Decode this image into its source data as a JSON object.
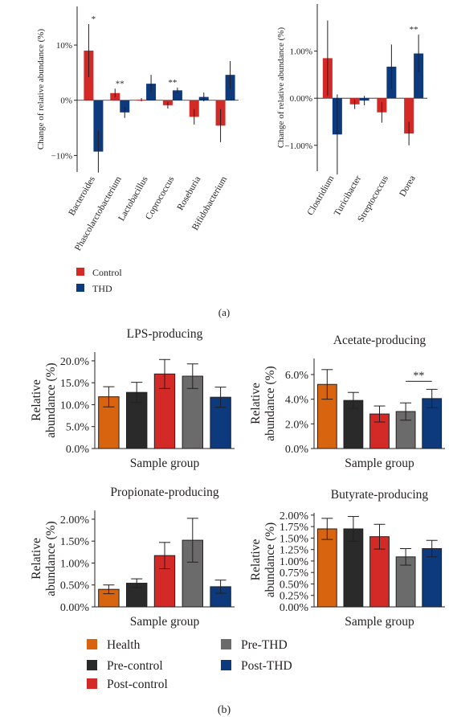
{
  "panel_labels": {
    "a": "(a)",
    "b": "(b)"
  },
  "legend_a": [
    {
      "label": "Control",
      "color": "#d42a27"
    },
    {
      "label": "THD",
      "color": "#0d3a7d"
    }
  ],
  "legend_b": [
    {
      "label": "Health",
      "color": "#d9640f"
    },
    {
      "label": "Pre-control",
      "color": "#2a2a2a"
    },
    {
      "label": "Post-control",
      "color": "#d42a27"
    },
    {
      "label": "Pre-THD",
      "color": "#6b6b6b"
    },
    {
      "label": "Post-THD",
      "color": "#0d3a7d"
    }
  ],
  "chart_data": [
    {
      "id": "a-left",
      "type": "bar",
      "ylabel": "Change of relative abundance (%)",
      "yticks": [
        "10%",
        "0%",
        "−10%"
      ],
      "ylim": [
        -13,
        17
      ],
      "categories": [
        "Bacteroides",
        "Phascolarctobacterium",
        "Lactobacillus",
        "Coprococcus",
        "Roseburia",
        "Bifidobacterium"
      ],
      "series": [
        {
          "name": "Control",
          "color": "#d42a27",
          "values": [
            9.0,
            1.3,
            0.1,
            -0.9,
            -3.0,
            -4.6
          ],
          "err": [
            4.8,
            0.8,
            0.3,
            0.6,
            1.4,
            3.0
          ]
        },
        {
          "name": "THD",
          "color": "#0d3a7d",
          "values": [
            -9.3,
            -2.2,
            3.0,
            1.8,
            0.6,
            4.6
          ],
          "err": [
            3.8,
            1.0,
            1.6,
            0.5,
            0.8,
            2.5
          ]
        }
      ],
      "annotations": [
        {
          "category": 0,
          "text": "*"
        },
        {
          "category": 1,
          "text": "**"
        },
        {
          "category": 3,
          "text": "**"
        }
      ]
    },
    {
      "id": "a-right",
      "type": "bar",
      "ylabel": "Change of relative abundance (%)",
      "yticks": [
        "1.00%",
        "0.00%",
        "−1.00%"
      ],
      "ylim": [
        -1.55,
        2.0
      ],
      "categories": [
        "Clostridium",
        "Turicibacter",
        "Streptococcus",
        "Dorea"
      ],
      "series": [
        {
          "name": "Control",
          "color": "#d42a27",
          "values": [
            0.85,
            -0.13,
            -0.3,
            -0.75
          ],
          "err": [
            0.8,
            0.1,
            0.22,
            0.25
          ]
        },
        {
          "name": "THD",
          "color": "#0d3a7d",
          "values": [
            -0.77,
            -0.05,
            0.67,
            0.95
          ],
          "err": [
            0.85,
            0.1,
            0.47,
            0.4
          ]
        }
      ],
      "annotations": [
        {
          "category": 3,
          "text": "**"
        }
      ]
    },
    {
      "id": "b-lps",
      "type": "bar",
      "title": "LPS-producing",
      "ylabel": [
        "Relative",
        "abundance (%)"
      ],
      "xlabel": "Sample group",
      "yticks": [
        "0.0%",
        "5.0%",
        "10.0%",
        "15.0%",
        "20.0%"
      ],
      "ylim": [
        0,
        22
      ],
      "categories": [
        "Health",
        "Pre-control",
        "Post-control",
        "Pre-THD",
        "Post-THD"
      ],
      "values": [
        11.8,
        12.8,
        17.0,
        16.5,
        11.7
      ],
      "err": [
        2.3,
        2.3,
        3.3,
        2.8,
        2.3
      ]
    },
    {
      "id": "b-acetate",
      "type": "bar",
      "title": "Acetate-producing",
      "ylabel": [
        "Relative",
        "abundance (%)"
      ],
      "xlabel": "Sample group",
      "yticks": [
        "0.0%",
        "2.0%",
        "4.0%",
        "6.0%"
      ],
      "ylim": [
        0,
        7.3
      ],
      "categories": [
        "Health",
        "Pre-control",
        "Post-control",
        "Pre-THD",
        "Post-THD"
      ],
      "values": [
        5.2,
        3.9,
        2.8,
        3.0,
        4.05
      ],
      "err": [
        1.2,
        0.65,
        0.65,
        0.7,
        0.75
      ],
      "annotations": [
        {
          "between": [
            3,
            4
          ],
          "text": "**"
        }
      ]
    },
    {
      "id": "b-propionate",
      "type": "bar",
      "title": "Propionate-producing",
      "ylabel": [
        "Relative",
        "abundance (%)"
      ],
      "xlabel": "Sample group",
      "yticks": [
        "0.00%",
        "0.50%",
        "1.00%",
        "1.50%",
        "2.00%"
      ],
      "ylim": [
        0,
        2.2
      ],
      "categories": [
        "Health",
        "Pre-control",
        "Post-control",
        "Pre-THD",
        "Post-THD"
      ],
      "values": [
        0.4,
        0.54,
        1.17,
        1.52,
        0.46
      ],
      "err": [
        0.1,
        0.1,
        0.3,
        0.5,
        0.15
      ]
    },
    {
      "id": "b-butyrate",
      "type": "bar",
      "title": "Butyrate-producing",
      "ylabel": [
        "Relative",
        "abundance (%)"
      ],
      "xlabel": "Sample group",
      "yticks": [
        "0.00%",
        "0.25%",
        "0.50%",
        "0.75%",
        "1.00%",
        "1.25%",
        "1.50%",
        "1.75%",
        "2.00%"
      ],
      "ylim": [
        0,
        2.05
      ],
      "categories": [
        "Health",
        "Pre-control",
        "Post-control",
        "Pre-THD",
        "Post-THD"
      ],
      "values": [
        1.7,
        1.7,
        1.53,
        1.09,
        1.27
      ],
      "err": [
        0.23,
        0.27,
        0.27,
        0.18,
        0.18
      ]
    }
  ]
}
